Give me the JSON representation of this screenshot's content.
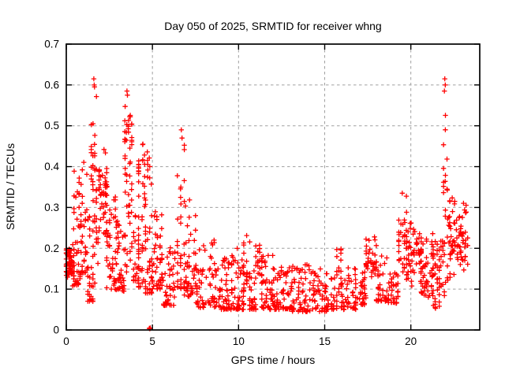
{
  "chart_data": {
    "type": "scatter",
    "title": "Day 050 of 2025, SRMTID for receiver whng",
    "xlabel": "GPS time / hours",
    "ylabel": "SRMTID / TECUs",
    "xlim": [
      0,
      24
    ],
    "ylim": [
      0,
      0.7
    ],
    "xticks": [
      0,
      5,
      10,
      15,
      20
    ],
    "xtick_labels": [
      "0",
      "5",
      "10",
      "15",
      "20"
    ],
    "yticks": [
      0,
      0.1,
      0.2,
      0.3,
      0.4,
      0.5,
      0.6,
      0.7
    ],
    "ytick_labels": [
      "0",
      "0.1",
      "0.2",
      "0.3",
      "0.4",
      "0.5",
      "0.6",
      "0.7"
    ],
    "grid": true,
    "legend": "none",
    "marker": "plus",
    "colors": {
      "points": "#ff0000",
      "grid": "#a0a0a0",
      "axis": "#000000",
      "background": "#ffffff"
    },
    "seed": 11,
    "clusters_format": "[x_start_hours, x_end_hours, y_min_TECUs, y_max_TECUs, n_points, y_distribution(u=uniform,b=bottom-weighted,m=mid-weighted), n_x_columns]",
    "clusters": [
      [
        0.0,
        0.45,
        0.1,
        0.22,
        45,
        "m",
        6
      ],
      [
        0.0,
        0.3,
        0.13,
        0.2,
        22,
        "u",
        5
      ],
      [
        0.35,
        0.8,
        0.11,
        0.28,
        28,
        "b",
        6
      ],
      [
        0.45,
        0.75,
        0.28,
        0.41,
        12,
        "u",
        4
      ],
      [
        0.85,
        1.2,
        0.14,
        0.43,
        38,
        "b",
        5
      ],
      [
        1.25,
        1.55,
        0.07,
        0.3,
        26,
        "b",
        4
      ],
      [
        1.45,
        1.75,
        0.28,
        0.58,
        26,
        "u",
        4
      ],
      [
        1.55,
        1.85,
        0.1,
        0.28,
        18,
        "u",
        4
      ],
      [
        1.9,
        2.35,
        0.22,
        0.46,
        48,
        "m",
        6
      ],
      [
        2.35,
        2.85,
        0.1,
        0.36,
        42,
        "b",
        7
      ],
      [
        2.9,
        3.35,
        0.095,
        0.27,
        44,
        "b",
        6
      ],
      [
        3.4,
        3.8,
        0.4,
        0.56,
        28,
        "m",
        5
      ],
      [
        3.42,
        3.8,
        0.14,
        0.4,
        28,
        "u",
        5
      ],
      [
        3.9,
        4.2,
        0.12,
        0.3,
        24,
        "b",
        4
      ],
      [
        4.2,
        4.55,
        0.28,
        0.465,
        22,
        "m",
        4
      ],
      [
        4.2,
        4.6,
        0.1,
        0.28,
        24,
        "b",
        5
      ],
      [
        4.6,
        4.95,
        0.09,
        0.44,
        38,
        "b",
        4
      ],
      [
        5.0,
        5.55,
        0.1,
        0.3,
        42,
        "b",
        7
      ],
      [
        5.55,
        6.3,
        0.06,
        0.21,
        48,
        "b",
        9
      ],
      [
        6.45,
        6.85,
        0.1,
        0.49,
        36,
        "b",
        3
      ],
      [
        6.85,
        7.5,
        0.08,
        0.33,
        44,
        "b",
        8
      ],
      [
        7.5,
        8.6,
        0.055,
        0.23,
        58,
        "b",
        13
      ],
      [
        8.6,
        9.6,
        0.05,
        0.19,
        58,
        "b",
        12
      ],
      [
        9.6,
        10.3,
        0.05,
        0.2,
        52,
        "b",
        9
      ],
      [
        10.3,
        10.65,
        0.1,
        0.235,
        18,
        "u",
        3
      ],
      [
        10.65,
        11.0,
        0.05,
        0.16,
        28,
        "b",
        5
      ],
      [
        11.0,
        11.35,
        0.1,
        0.24,
        22,
        "m",
        4
      ],
      [
        11.35,
        12.1,
        0.05,
        0.185,
        48,
        "b",
        9
      ],
      [
        12.1,
        13.1,
        0.05,
        0.165,
        54,
        "b",
        12
      ],
      [
        13.1,
        14.1,
        0.045,
        0.165,
        54,
        "b",
        12
      ],
      [
        14.1,
        15.1,
        0.045,
        0.15,
        54,
        "b",
        12
      ],
      [
        15.1,
        15.7,
        0.05,
        0.145,
        32,
        "b",
        7
      ],
      [
        15.7,
        15.95,
        0.09,
        0.2,
        16,
        "u",
        3
      ],
      [
        15.95,
        16.8,
        0.05,
        0.155,
        44,
        "b",
        10
      ],
      [
        16.8,
        17.4,
        0.06,
        0.16,
        34,
        "b",
        7
      ],
      [
        17.4,
        18.0,
        0.09,
        0.245,
        38,
        "m",
        7
      ],
      [
        18.0,
        18.7,
        0.07,
        0.185,
        38,
        "b",
        8
      ],
      [
        18.7,
        19.25,
        0.065,
        0.14,
        32,
        "b",
        7
      ],
      [
        19.3,
        19.75,
        0.12,
        0.335,
        32,
        "m",
        5
      ],
      [
        19.75,
        20.6,
        0.1,
        0.265,
        58,
        "m",
        10
      ],
      [
        20.6,
        21.3,
        0.08,
        0.24,
        52,
        "b",
        8
      ],
      [
        21.3,
        21.65,
        0.045,
        0.22,
        28,
        "u",
        4
      ],
      [
        21.65,
        21.95,
        0.08,
        0.22,
        18,
        "u",
        4
      ],
      [
        21.9,
        22.1,
        0.26,
        0.58,
        11,
        "u",
        3
      ],
      [
        22.0,
        22.4,
        0.1,
        0.345,
        16,
        "u",
        4
      ],
      [
        22.2,
        23.3,
        0.13,
        0.32,
        72,
        "m",
        12
      ]
    ],
    "extra_points": [
      [
        4.82,
        0.004
      ],
      [
        4.85,
        0.003
      ],
      [
        4.88,
        0.005
      ],
      [
        1.6,
        0.615
      ],
      [
        1.62,
        0.6
      ],
      [
        1.64,
        0.595
      ],
      [
        3.52,
        0.585
      ],
      [
        3.55,
        0.575
      ],
      [
        6.68,
        0.49
      ],
      [
        6.72,
        0.47
      ],
      [
        21.95,
        0.585
      ],
      [
        21.97,
        0.615
      ],
      [
        22.0,
        0.6
      ],
      [
        19.5,
        0.335
      ],
      [
        22.1,
        0.345
      ],
      [
        22.55,
        0.315
      ]
    ]
  }
}
